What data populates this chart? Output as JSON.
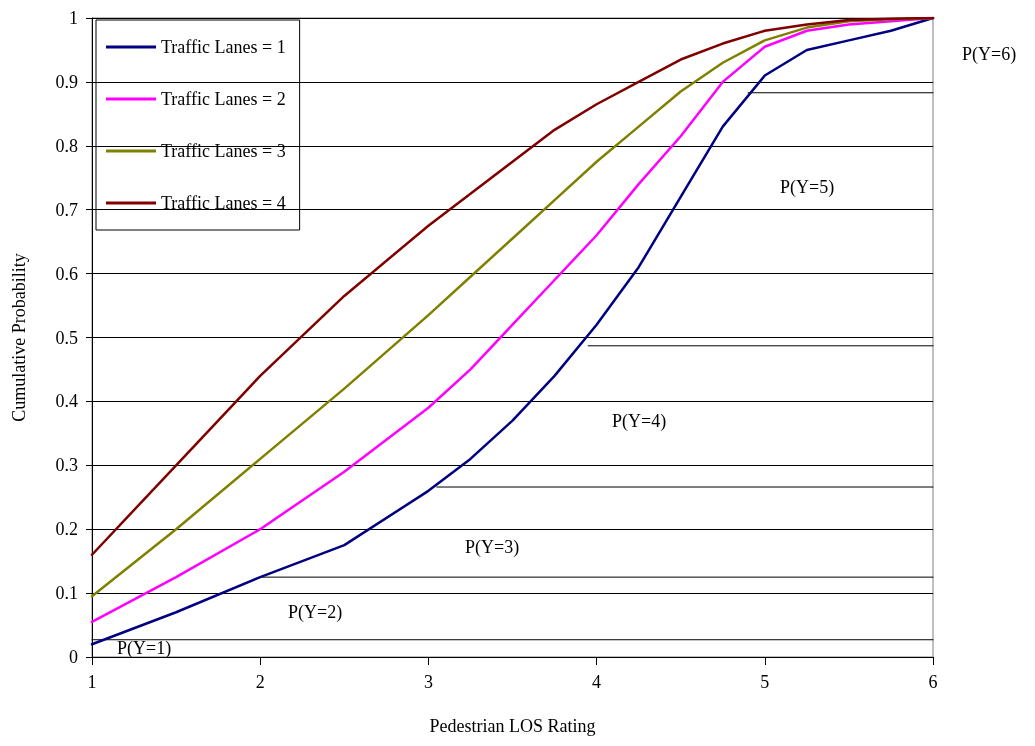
{
  "chart_data": {
    "type": "line",
    "xlabel": "Pedestrian LOS Rating",
    "ylabel": "Cumulative Probability",
    "x": [
      1,
      1.5,
      2,
      2.5,
      3,
      3.25,
      3.5,
      3.75,
      4,
      4.25,
      4.5,
      4.75,
      5,
      5.25,
      5.5,
      5.75,
      6
    ],
    "series": [
      {
        "name": "Traffic Lanes = 1",
        "color": "#000080",
        "values": [
          0.02,
          0.07,
          0.125,
          0.175,
          0.26,
          0.31,
          0.37,
          0.44,
          0.52,
          0.61,
          0.72,
          0.83,
          0.91,
          0.95,
          0.965,
          0.98,
          1
        ]
      },
      {
        "name": "Traffic Lanes = 2",
        "color": "#ff00ff",
        "values": [
          0.055,
          0.125,
          0.2,
          0.29,
          0.39,
          0.45,
          0.52,
          0.59,
          0.66,
          0.74,
          0.815,
          0.9,
          0.955,
          0.98,
          0.99,
          0.995,
          1
        ]
      },
      {
        "name": "Traffic Lanes = 3",
        "color": "#808000",
        "values": [
          0.095,
          0.2,
          0.31,
          0.42,
          0.535,
          0.595,
          0.655,
          0.715,
          0.775,
          0.83,
          0.885,
          0.93,
          0.965,
          0.985,
          0.995,
          0.998,
          1
        ]
      },
      {
        "name": "Traffic Lanes = 4",
        "color": "#800000",
        "values": [
          0.16,
          0.3,
          0.44,
          0.565,
          0.675,
          0.725,
          0.775,
          0.825,
          0.865,
          0.9,
          0.935,
          0.96,
          0.98,
          0.99,
          0.997,
          0.999,
          1
        ]
      },
      {
        "type": "line",
        "color": "#000000",
        "x": [
          1,
          6
        ],
        "values": [
          0.027,
          0.027
        ]
      },
      {
        "type": "line",
        "color": "#000000",
        "x": [
          2,
          6
        ],
        "values": [
          0.125,
          0.125
        ]
      },
      {
        "type": "line",
        "color": "#000000",
        "x": [
          3.05,
          6
        ],
        "values": [
          0.266,
          0.266
        ]
      },
      {
        "type": "line",
        "color": "#000000",
        "x": [
          3.95,
          6
        ],
        "values": [
          0.487,
          0.487
        ]
      },
      {
        "type": "line",
        "color": "#000000",
        "x": [
          4.9,
          6
        ],
        "values": [
          0.883,
          0.883
        ]
      }
    ],
    "xlim": [
      1,
      6
    ],
    "xticks": [
      1,
      2,
      3,
      4,
      5,
      6
    ],
    "ylim": [
      0,
      1
    ],
    "yticks": [
      0,
      0.1,
      0.2,
      0.3,
      0.4,
      0.5,
      0.6,
      0.7,
      0.8,
      0.9,
      1
    ],
    "grid": "y",
    "legend": "top left",
    "marker": "none",
    "line_style": "solid",
    "annotations": [
      "P(Y=1)",
      "P(Y=2)",
      "P(Y=3)",
      "P(Y=4)",
      "P(Y=5)",
      "P(Y=6)"
    ]
  }
}
